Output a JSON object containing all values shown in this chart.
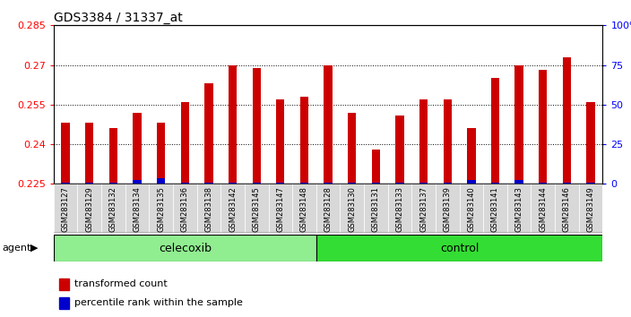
{
  "title": "GDS3384 / 31337_at",
  "samples": [
    "GSM283127",
    "GSM283129",
    "GSM283132",
    "GSM283134",
    "GSM283135",
    "GSM283136",
    "GSM283138",
    "GSM283142",
    "GSM283145",
    "GSM283147",
    "GSM283148",
    "GSM283128",
    "GSM283130",
    "GSM283131",
    "GSM283133",
    "GSM283137",
    "GSM283139",
    "GSM283140",
    "GSM283141",
    "GSM283143",
    "GSM283144",
    "GSM283146",
    "GSM283149"
  ],
  "red_values": [
    0.248,
    0.248,
    0.246,
    0.252,
    0.248,
    0.256,
    0.263,
    0.27,
    0.269,
    0.257,
    0.258,
    0.27,
    0.252,
    0.238,
    0.251,
    0.257,
    0.257,
    0.246,
    0.265,
    0.27,
    0.268,
    0.273,
    0.256
  ],
  "blue_values": [
    0.0005,
    0.0005,
    0.0005,
    0.0015,
    0.002,
    0.0005,
    0.0005,
    0.0005,
    0.0005,
    0.0005,
    0.0005,
    0.0005,
    0.0005,
    0.0005,
    0.0005,
    0.0005,
    0.0005,
    0.0015,
    0.0005,
    0.0015,
    0.0005,
    0.0005,
    0.0005
  ],
  "celecoxib_count": 11,
  "control_count": 12,
  "ymin": 0.225,
  "ymax": 0.285,
  "yticks": [
    0.225,
    0.24,
    0.255,
    0.27,
    0.285
  ],
  "right_yticks": [
    0,
    25,
    50,
    75,
    100
  ],
  "bar_color_red": "#cc0000",
  "bar_color_blue": "#0000cc",
  "celecoxib_color": "#90ee90",
  "control_color": "#33dd33",
  "agent_label": "agent",
  "celecoxib_label": "celecoxib",
  "control_label": "control",
  "legend_red": "transformed count",
  "legend_blue": "percentile rank within the sample",
  "bar_width": 0.35,
  "background_color": "#ffffff"
}
